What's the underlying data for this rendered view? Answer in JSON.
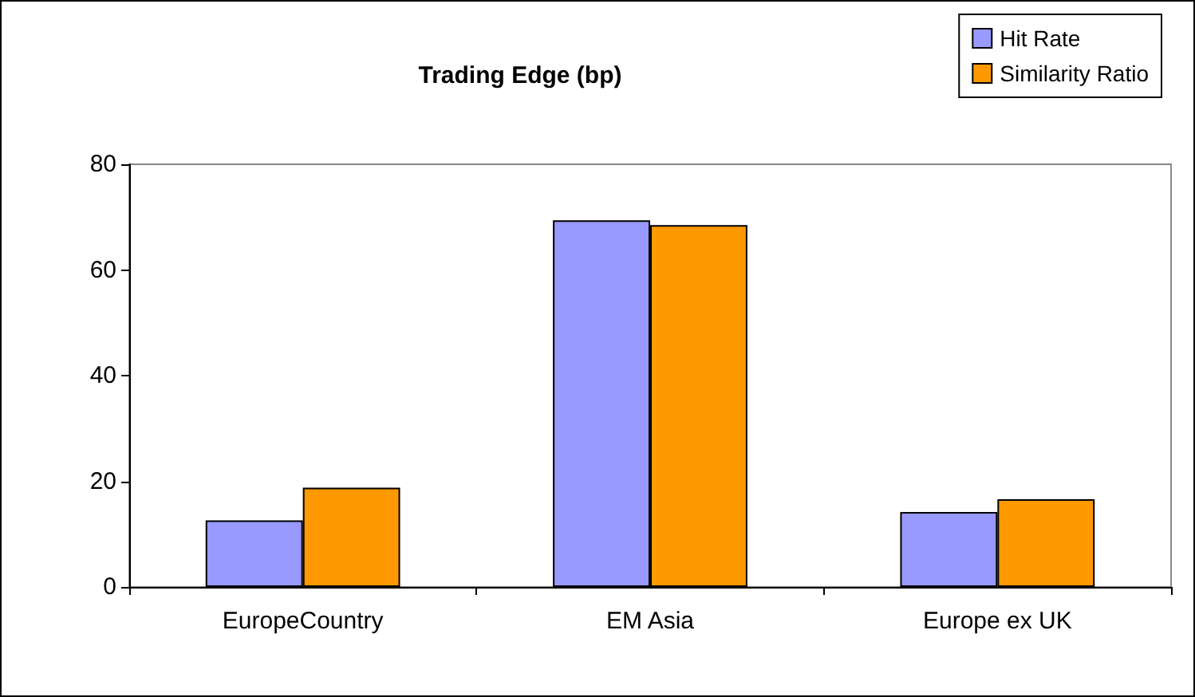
{
  "chart_data": {
    "type": "bar",
    "title": "Trading Edge (bp)",
    "categories": [
      "EuropeCountry",
      "EM Asia",
      "Europe ex UK"
    ],
    "series": [
      {
        "name": "Hit Rate",
        "color": "#9999ff",
        "values": [
          12.6,
          69.4,
          14.2
        ]
      },
      {
        "name": "Similarity Ratio",
        "color": "#ff9900",
        "values": [
          18.8,
          68.5,
          16.6
        ]
      }
    ],
    "ylim": [
      0,
      80
    ],
    "yticks": [
      0,
      20,
      40,
      60,
      80
    ],
    "grid": false,
    "legend": "top right"
  }
}
